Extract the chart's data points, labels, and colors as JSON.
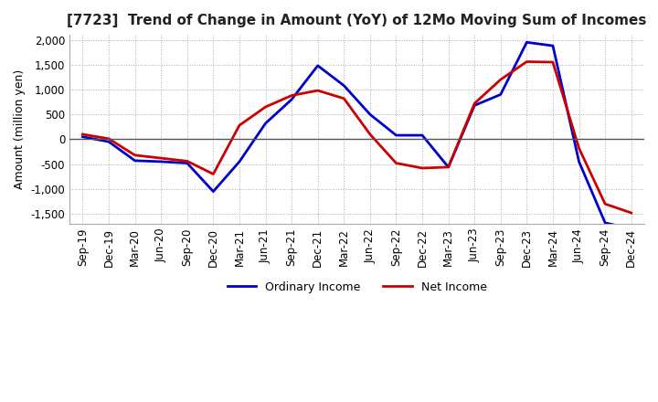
{
  "title": "[7723]  Trend of Change in Amount (YoY) of 12Mo Moving Sum of Incomes",
  "ylabel": "Amount (million yen)",
  "ylim": [
    -1700,
    2100
  ],
  "yticks": [
    -1500,
    -1000,
    -500,
    0,
    500,
    1000,
    1500,
    2000
  ],
  "x_labels": [
    "Sep-19",
    "Dec-19",
    "Mar-20",
    "Jun-20",
    "Sep-20",
    "Dec-20",
    "Mar-21",
    "Jun-21",
    "Sep-21",
    "Dec-21",
    "Mar-22",
    "Jun-22",
    "Sep-22",
    "Dec-22",
    "Mar-23",
    "Jun-23",
    "Sep-23",
    "Dec-23",
    "Mar-24",
    "Jun-24",
    "Sep-24",
    "Dec-24"
  ],
  "ordinary_income": [
    50,
    -50,
    -430,
    -450,
    -480,
    -1050,
    -450,
    320,
    800,
    1480,
    1080,
    500,
    80,
    80,
    -560,
    680,
    900,
    1950,
    1880,
    -450,
    -1680,
    -1800
  ],
  "net_income": [
    100,
    10,
    -320,
    -380,
    -440,
    -700,
    280,
    650,
    880,
    980,
    820,
    100,
    -480,
    -580,
    -560,
    720,
    1200,
    1560,
    1550,
    -180,
    -1300,
    -1480
  ],
  "ordinary_color": "#0000cc",
  "net_color": "#cc0000",
  "bg_color": "#ffffff",
  "grid_color": "#aaaaaa",
  "zero_line_color": "#555555",
  "legend_labels": [
    "Ordinary Income",
    "Net Income"
  ]
}
